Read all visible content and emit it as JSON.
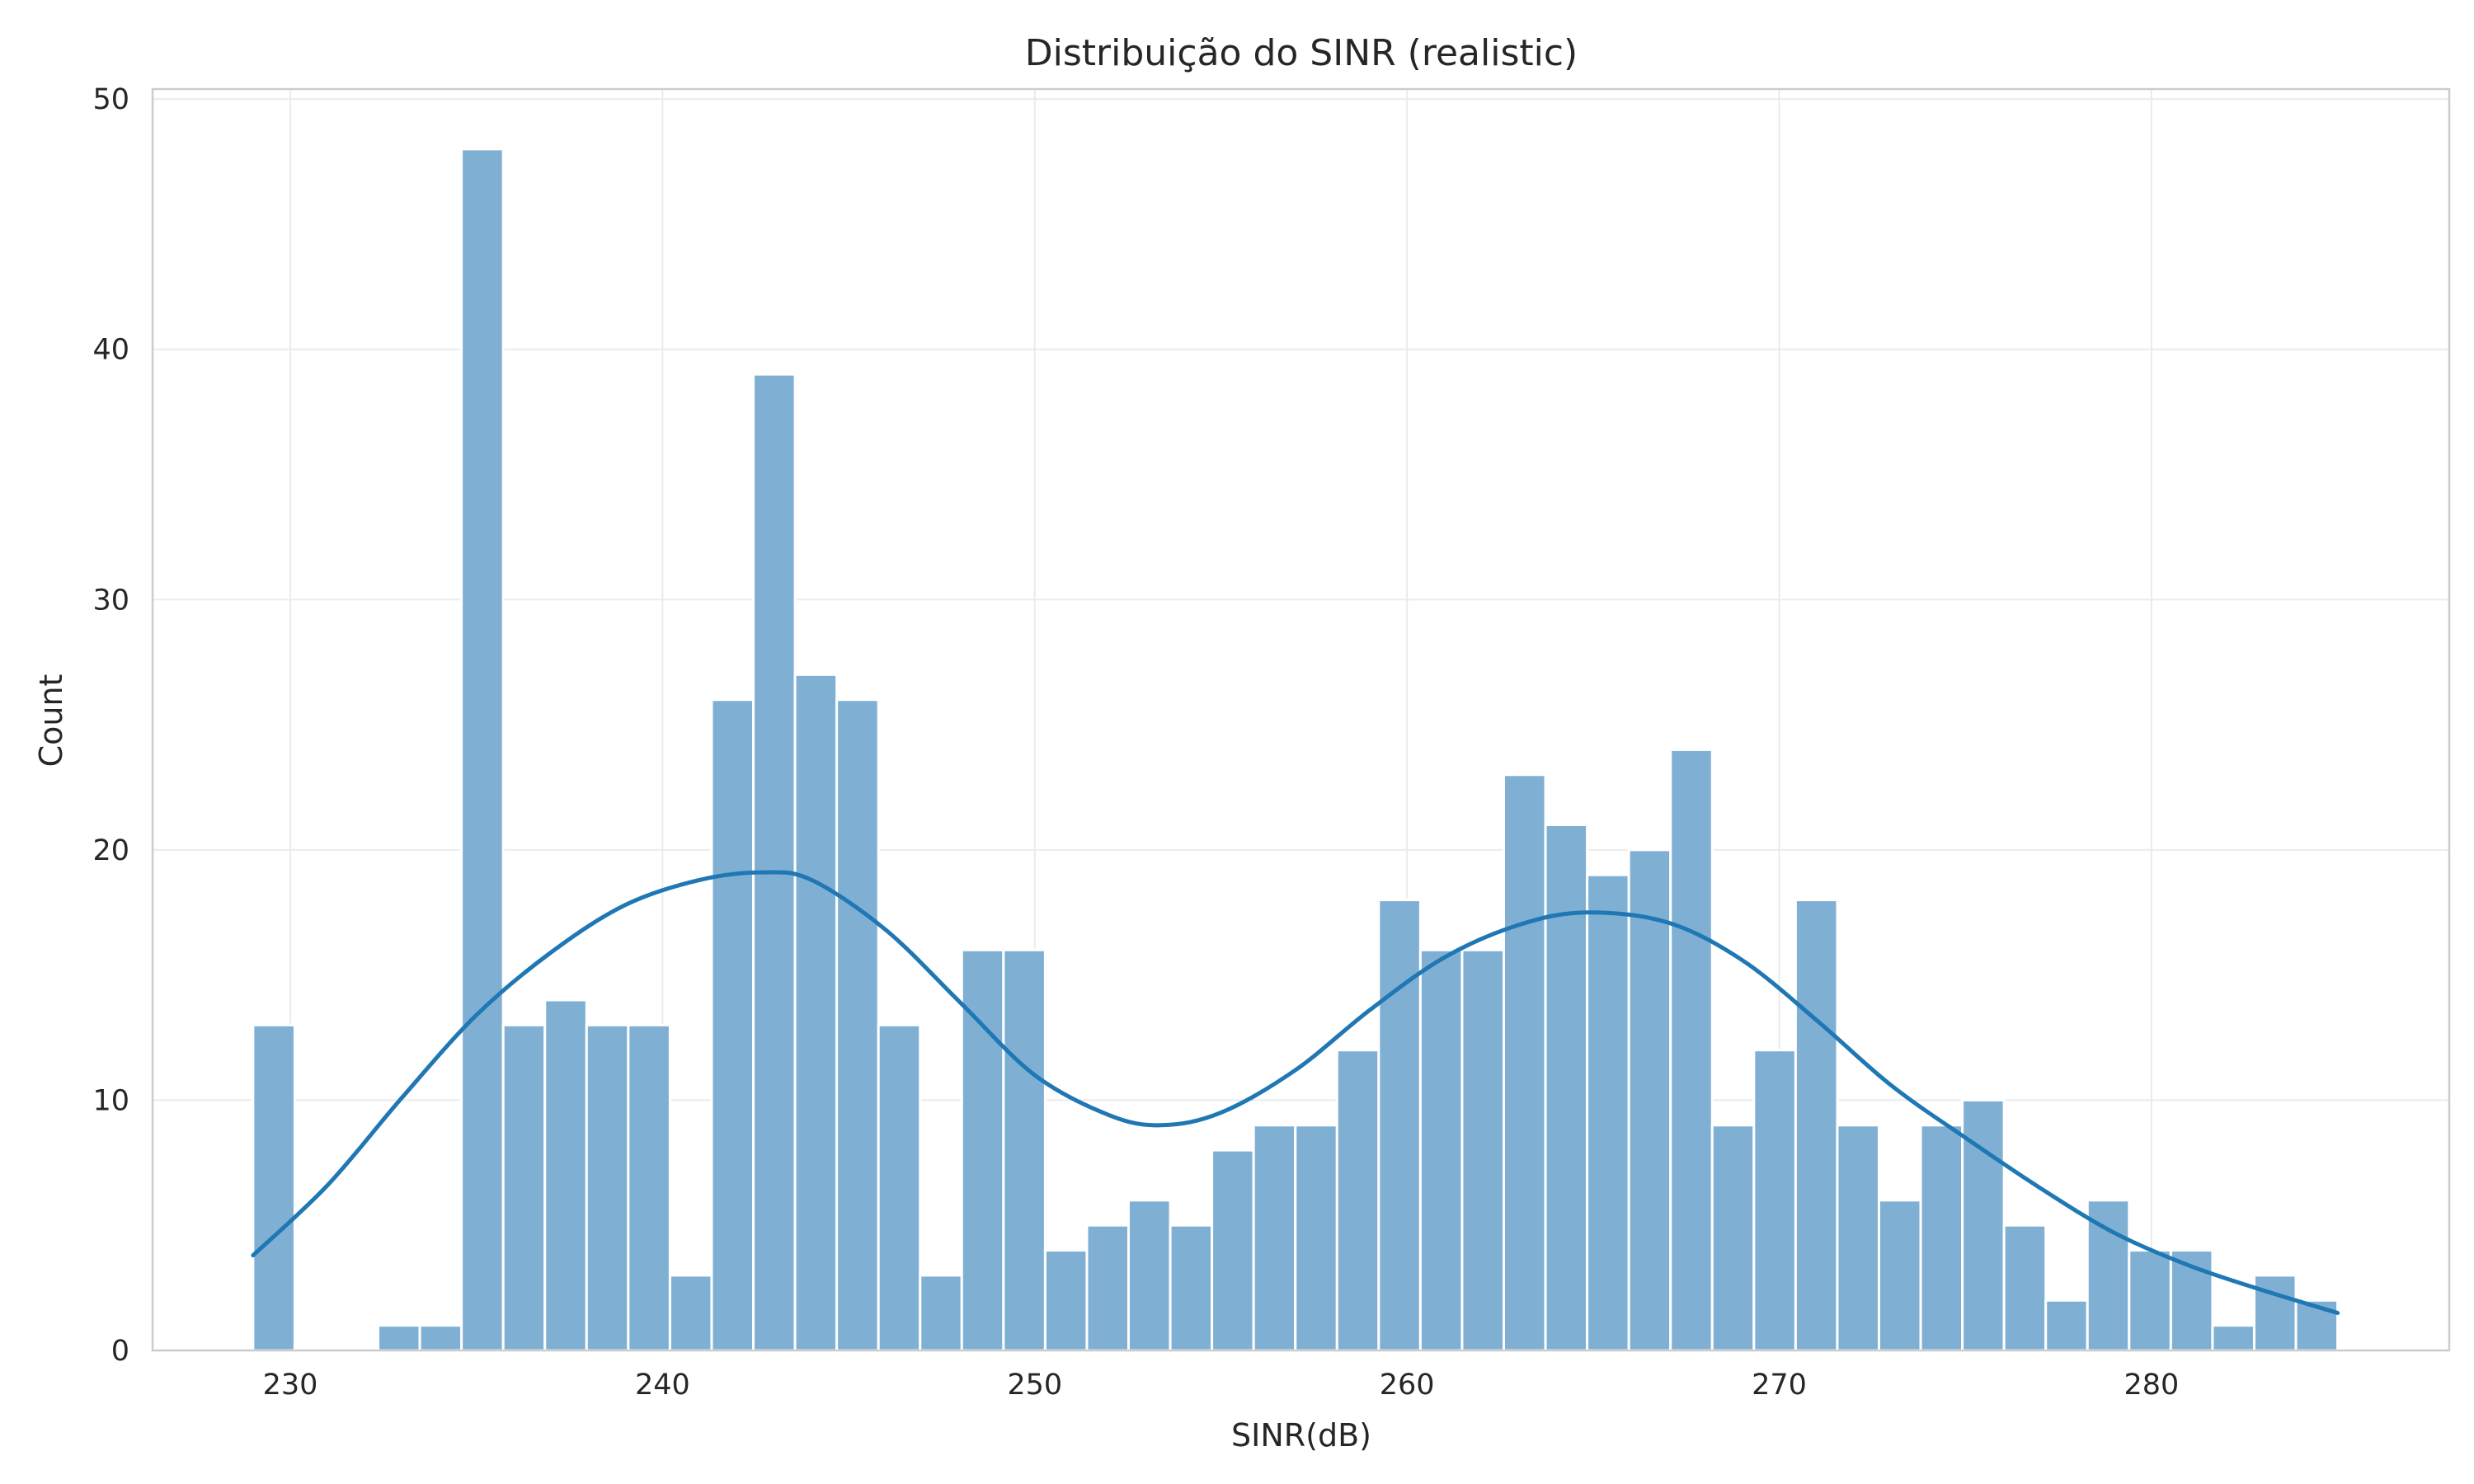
{
  "chart_data": {
    "type": "bar",
    "title": "Distribuição do SINR (realistic)",
    "xlabel": "SINR(dB)",
    "ylabel": "Count",
    "xlim": [
      226.3,
      288.0
    ],
    "ylim": [
      0,
      50.4
    ],
    "xticks": [
      "230",
      "240",
      "250",
      "260",
      "270",
      "280"
    ],
    "yticks": [
      "0",
      "10",
      "20",
      "30",
      "40",
      "50"
    ],
    "grid": true,
    "bar_color": "#7fb0d4",
    "curve_color": "#1f77b4",
    "bins": {
      "start": 229.0,
      "width": 1.12,
      "counts": [
        13,
        0,
        0,
        1,
        1,
        48,
        13,
        14,
        13,
        13,
        3,
        26,
        39,
        27,
        26,
        13,
        3,
        16,
        16,
        4,
        5,
        6,
        5,
        8,
        9,
        9,
        12,
        18,
        16,
        16,
        23,
        21,
        19,
        20,
        24,
        9,
        12,
        18,
        9,
        6,
        9,
        10,
        5,
        2,
        6,
        4,
        4,
        1,
        3,
        2
      ]
    },
    "series": [
      {
        "name": "",
        "type": "line",
        "x": [
          229.0,
          231.0,
          233.0,
          235.0,
          237.0,
          239.0,
          241.0,
          242.7,
          244.0,
          246.0,
          248.0,
          250.0,
          252.0,
          253.4,
          255.0,
          257.0,
          259.0,
          261.0,
          263.0,
          264.8,
          267.0,
          269.0,
          271.0,
          273.0,
          275.0,
          277.0,
          279.0,
          281.0,
          283.0,
          285.0
        ],
        "y": [
          3.8,
          6.6,
          10.1,
          13.4,
          15.9,
          17.8,
          18.8,
          19.1,
          18.8,
          16.8,
          13.9,
          11.0,
          9.4,
          9.0,
          9.5,
          11.2,
          13.6,
          15.7,
          17.0,
          17.5,
          17.1,
          15.6,
          13.2,
          10.6,
          8.5,
          6.5,
          4.7,
          3.4,
          2.4,
          1.5
        ]
      }
    ]
  }
}
